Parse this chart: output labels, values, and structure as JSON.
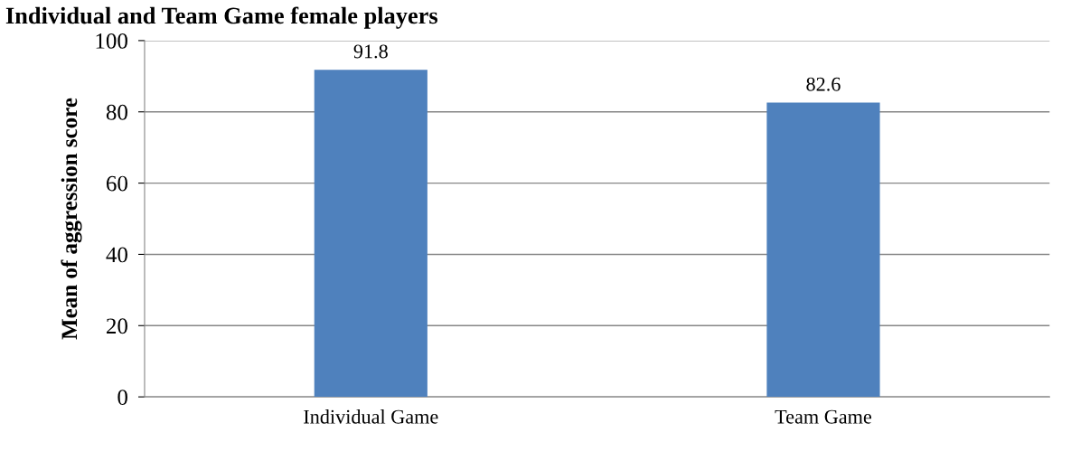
{
  "chart_data": {
    "type": "bar",
    "title": "Individual and Team Game female players",
    "ylabel": "Mean of aggression score",
    "categories": [
      "Individual Game",
      "Team Game"
    ],
    "values": [
      91.8,
      82.6
    ],
    "color": "#4f81bd",
    "ylim": [
      0,
      100
    ],
    "yticks": [
      0,
      20,
      40,
      60,
      80,
      100
    ],
    "grid": "y",
    "data_labels": true
  }
}
